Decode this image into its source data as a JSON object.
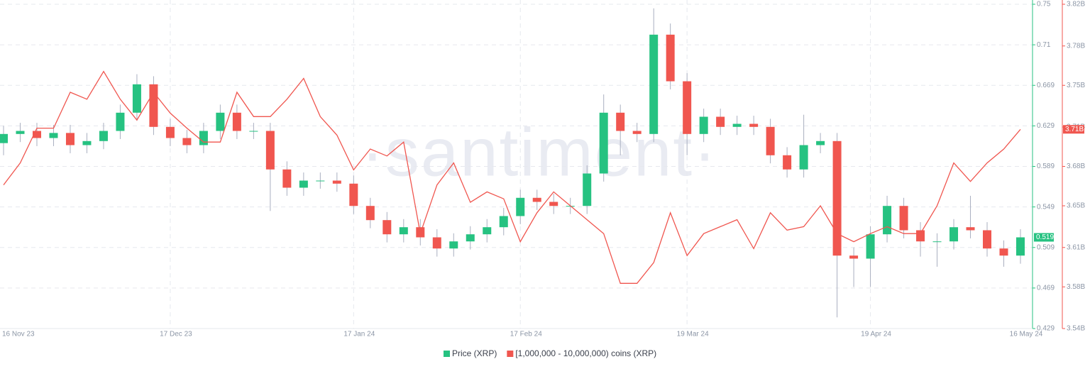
{
  "chart_data": {
    "type": "candlestick",
    "watermark": "·santiment·",
    "categories": [
      "16 Nov 23",
      null,
      null,
      null,
      null,
      null,
      null,
      null,
      null,
      null,
      "17 Dec 23",
      null,
      null,
      null,
      null,
      null,
      null,
      null,
      null,
      null,
      null,
      "17 Jan 24",
      null,
      null,
      null,
      null,
      null,
      null,
      null,
      null,
      null,
      "17 Feb 24",
      null,
      null,
      null,
      null,
      null,
      null,
      null,
      null,
      null,
      "19 Mar 24",
      null,
      null,
      null,
      null,
      null,
      null,
      null,
      null,
      null,
      null,
      "19 Apr 24",
      null,
      null,
      null,
      null,
      null,
      null,
      null,
      null,
      "16 May 24"
    ],
    "ylim": [
      0.429,
      0.749
    ],
    "yticks": [
      0.429,
      0.469,
      0.509,
      0.549,
      0.589,
      0.629,
      0.669,
      {
        "value": 0.709,
        "label": "0.71"
      },
      {
        "value": 0.749,
        "label": "0.75"
      }
    ],
    "y2lim": [
      3.54,
      3.82
    ],
    "y2ticks": [
      {
        "value": 3.54,
        "label": "3.54B"
      },
      {
        "value": 3.576,
        "label": "3.58B"
      },
      {
        "value": 3.61,
        "label": "3.61B"
      },
      {
        "value": 3.646,
        "label": "3.65B"
      },
      {
        "value": 3.68,
        "label": "3.68B"
      },
      {
        "value": 3.714,
        "label": "3.71B"
      },
      {
        "value": 3.75,
        "label": "3.75B"
      },
      {
        "value": 3.784,
        "label": "3.78B"
      },
      {
        "value": 3.82,
        "label": "3.82B"
      }
    ],
    "grid": true,
    "series": [
      {
        "name": "Price (XRP)",
        "color": "#26c281",
        "down_color": "#f0564f",
        "last_value_label": "0.519",
        "open": [
          0.612,
          0.621,
          0.624,
          0.617,
          0.622,
          0.61,
          0.614,
          0.624,
          0.642,
          0.67,
          0.628,
          0.617,
          0.61,
          0.624,
          0.642,
          0.624,
          0.624,
          0.586,
          0.568,
          0.575,
          0.575,
          0.572,
          0.55,
          0.536,
          0.522,
          0.529,
          0.519,
          0.508,
          0.515,
          0.522,
          0.529,
          0.54,
          0.558,
          0.554,
          0.55,
          0.55,
          0.582,
          0.642,
          0.624,
          0.621,
          0.719,
          0.673,
          0.621,
          0.638,
          0.628,
          0.631,
          0.628,
          0.6,
          0.586,
          0.61,
          0.614,
          0.501,
          0.498,
          0.522,
          0.55,
          0.526,
          0.515,
          0.515,
          0.529,
          0.526,
          0.508,
          0.501
        ],
        "high": [
          0.629,
          0.632,
          0.632,
          0.63,
          0.63,
          0.622,
          0.632,
          0.65,
          0.68,
          0.678,
          0.636,
          0.625,
          0.632,
          0.65,
          0.65,
          0.632,
          0.632,
          0.594,
          0.583,
          0.583,
          0.583,
          0.58,
          0.558,
          0.544,
          0.537,
          0.537,
          0.527,
          0.523,
          0.53,
          0.537,
          0.548,
          0.566,
          0.566,
          0.562,
          0.558,
          0.59,
          0.66,
          0.65,
          0.632,
          0.745,
          0.73,
          0.681,
          0.646,
          0.646,
          0.639,
          0.639,
          0.636,
          0.608,
          0.64,
          0.622,
          0.622,
          0.509,
          0.53,
          0.56,
          0.558,
          0.534,
          0.523,
          0.537,
          0.56,
          0.534,
          0.516,
          0.527
        ],
        "low": [
          0.6,
          0.613,
          0.609,
          0.609,
          0.602,
          0.602,
          0.606,
          0.616,
          0.634,
          0.62,
          0.609,
          0.602,
          0.602,
          0.616,
          0.616,
          0.616,
          0.545,
          0.56,
          0.56,
          0.567,
          0.564,
          0.542,
          0.528,
          0.514,
          0.514,
          0.511,
          0.5,
          0.5,
          0.507,
          0.514,
          0.521,
          0.532,
          0.546,
          0.542,
          0.542,
          0.542,
          0.574,
          0.6,
          0.613,
          0.613,
          0.665,
          0.6,
          0.613,
          0.62,
          0.62,
          0.62,
          0.592,
          0.578,
          0.578,
          0.602,
          0.44,
          0.47,
          0.47,
          0.514,
          0.518,
          0.5,
          0.49,
          0.507,
          0.518,
          0.5,
          0.49,
          0.493
        ],
        "close": [
          0.621,
          0.624,
          0.617,
          0.622,
          0.61,
          0.614,
          0.624,
          0.642,
          0.67,
          0.628,
          0.617,
          0.61,
          0.624,
          0.642,
          0.624,
          0.624,
          0.586,
          0.568,
          0.575,
          0.575,
          0.572,
          0.55,
          0.536,
          0.522,
          0.529,
          0.519,
          0.508,
          0.515,
          0.522,
          0.529,
          0.54,
          0.558,
          0.554,
          0.55,
          0.55,
          0.582,
          0.642,
          0.624,
          0.621,
          0.719,
          0.673,
          0.621,
          0.638,
          0.628,
          0.631,
          0.628,
          0.6,
          0.586,
          0.61,
          0.614,
          0.501,
          0.498,
          0.522,
          0.55,
          0.526,
          0.515,
          0.515,
          0.529,
          0.526,
          0.508,
          0.501,
          0.519
        ]
      },
      {
        "name": "[1,000,000 - 10,000,000) coins (XRP)",
        "color": "#f0564f",
        "axis": "y2",
        "last_value_label": "3.71B",
        "values": [
          3.664,
          3.683,
          3.713,
          3.713,
          3.744,
          3.738,
          3.762,
          3.738,
          3.72,
          3.744,
          3.726,
          3.713,
          3.701,
          3.701,
          3.744,
          3.723,
          3.723,
          3.738,
          3.756,
          3.723,
          3.707,
          3.677,
          3.695,
          3.689,
          3.701,
          3.622,
          3.664,
          3.683,
          3.649,
          3.658,
          3.652,
          3.615,
          3.64,
          3.658,
          3.646,
          3.634,
          3.622,
          3.579,
          3.579,
          3.597,
          3.64,
          3.603,
          3.622,
          3.628,
          3.634,
          3.609,
          3.64,
          3.625,
          3.628,
          3.646,
          3.622,
          3.615,
          3.622,
          3.628,
          3.622,
          3.622,
          3.646,
          3.683,
          3.667,
          3.683,
          3.695,
          3.712
        ]
      }
    ]
  }
}
